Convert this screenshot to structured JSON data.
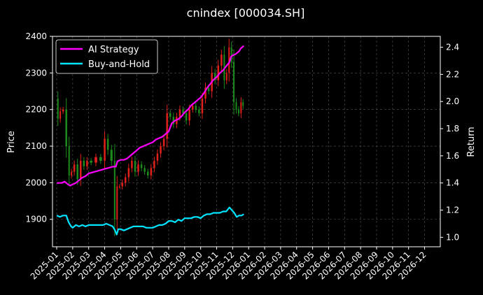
{
  "chart_data": {
    "type": "line",
    "title": "cnindex [000034.SH]",
    "ylabel": "Price",
    "y2label": "Return",
    "ylim": [
      1825,
      2400
    ],
    "y2lim": [
      0.93,
      2.48
    ],
    "yticks": [
      1900,
      2000,
      2100,
      2200,
      2300,
      2400
    ],
    "y2ticks": [
      1.0,
      1.2,
      1.4,
      1.6,
      1.8,
      2.0,
      2.2,
      2.4
    ],
    "xticks": [
      "2025-01",
      "2025-02",
      "2025-03",
      "2025-04",
      "2025-05",
      "2025-06",
      "2025-07",
      "2025-08",
      "2025-09",
      "2025-10",
      "2025-11",
      "2025-12",
      "2026-01",
      "2026-02",
      "2026-03",
      "2026-04",
      "2026-05",
      "2026-06",
      "2026-07",
      "2026-08",
      "2026-09",
      "2026-10",
      "2026-11",
      "2026-12"
    ],
    "grid": true,
    "legend_position": "top-left",
    "colors": {
      "up": "#e0201a",
      "down": "#1c8c1c",
      "ai": "#ff00ff",
      "bh": "#00e5ff"
    },
    "candles_close": [
      {
        "m": 0.0,
        "v": 2230
      },
      {
        "m": 0.15,
        "v": 2175
      },
      {
        "m": 0.3,
        "v": 2195
      },
      {
        "m": 0.5,
        "v": 2200
      },
      {
        "m": 0.7,
        "v": 2100
      },
      {
        "m": 0.85,
        "v": 2020
      },
      {
        "m": 1.0,
        "v": 2030
      },
      {
        "m": 1.2,
        "v": 2050
      },
      {
        "m": 1.4,
        "v": 2010
      },
      {
        "m": 1.6,
        "v": 2060
      },
      {
        "m": 1.8,
        "v": 2045
      },
      {
        "m": 2.0,
        "v": 2060
      },
      {
        "m": 2.3,
        "v": 2055
      },
      {
        "m": 2.6,
        "v": 2070
      },
      {
        "m": 2.9,
        "v": 2060
      },
      {
        "m": 3.1,
        "v": 2120
      },
      {
        "m": 3.3,
        "v": 2090
      },
      {
        "m": 3.55,
        "v": 2060
      },
      {
        "m": 3.7,
        "v": 1900
      },
      {
        "m": 3.85,
        "v": 1990
      },
      {
        "m": 4.0,
        "v": 1990
      },
      {
        "m": 4.2,
        "v": 2000
      },
      {
        "m": 4.4,
        "v": 2015
      },
      {
        "m": 4.6,
        "v": 2040
      },
      {
        "m": 4.8,
        "v": 2060
      },
      {
        "m": 5.0,
        "v": 2030
      },
      {
        "m": 5.2,
        "v": 2050
      },
      {
        "m": 5.4,
        "v": 2040
      },
      {
        "m": 5.6,
        "v": 2030
      },
      {
        "m": 5.8,
        "v": 2020
      },
      {
        "m": 6.0,
        "v": 2040
      },
      {
        "m": 6.2,
        "v": 2060
      },
      {
        "m": 6.4,
        "v": 2080
      },
      {
        "m": 6.6,
        "v": 2100
      },
      {
        "m": 6.8,
        "v": 2120
      },
      {
        "m": 7.0,
        "v": 2190
      },
      {
        "m": 7.2,
        "v": 2180
      },
      {
        "m": 7.4,
        "v": 2160
      },
      {
        "m": 7.6,
        "v": 2180
      },
      {
        "m": 7.8,
        "v": 2200
      },
      {
        "m": 8.0,
        "v": 2190
      },
      {
        "m": 8.2,
        "v": 2170
      },
      {
        "m": 8.4,
        "v": 2200
      },
      {
        "m": 8.6,
        "v": 2210
      },
      {
        "m": 8.8,
        "v": 2200
      },
      {
        "m": 9.0,
        "v": 2190
      },
      {
        "m": 9.2,
        "v": 2230
      },
      {
        "m": 9.4,
        "v": 2260
      },
      {
        "m": 9.6,
        "v": 2250
      },
      {
        "m": 9.8,
        "v": 2300
      },
      {
        "m": 10.0,
        "v": 2280
      },
      {
        "m": 10.2,
        "v": 2320
      },
      {
        "m": 10.4,
        "v": 2350
      },
      {
        "m": 10.55,
        "v": 2280
      },
      {
        "m": 10.7,
        "v": 2300
      },
      {
        "m": 10.85,
        "v": 2370
      },
      {
        "m": 11.0,
        "v": 2330
      },
      {
        "m": 11.15,
        "v": 2220
      },
      {
        "m": 11.3,
        "v": 2200
      },
      {
        "m": 11.45,
        "v": 2190
      },
      {
        "m": 11.6,
        "v": 2220
      },
      {
        "m": 11.7,
        "v": 2210
      }
    ],
    "series": [
      {
        "name": "AI Strategy",
        "points": [
          [
            0.0,
            1.4
          ],
          [
            0.3,
            1.4
          ],
          [
            0.5,
            1.41
          ],
          [
            0.7,
            1.39
          ],
          [
            0.85,
            1.38
          ],
          [
            1.0,
            1.39
          ],
          [
            1.2,
            1.4
          ],
          [
            1.4,
            1.42
          ],
          [
            1.6,
            1.44
          ],
          [
            1.8,
            1.45
          ],
          [
            2.0,
            1.47
          ],
          [
            2.3,
            1.48
          ],
          [
            2.6,
            1.49
          ],
          [
            2.9,
            1.5
          ],
          [
            3.2,
            1.51
          ],
          [
            3.5,
            1.52
          ],
          [
            3.7,
            1.52
          ],
          [
            3.8,
            1.56
          ],
          [
            4.0,
            1.57
          ],
          [
            4.2,
            1.57
          ],
          [
            4.4,
            1.58
          ],
          [
            4.6,
            1.6
          ],
          [
            4.8,
            1.62
          ],
          [
            5.0,
            1.64
          ],
          [
            5.2,
            1.66
          ],
          [
            5.4,
            1.67
          ],
          [
            5.6,
            1.68
          ],
          [
            5.8,
            1.69
          ],
          [
            6.0,
            1.7
          ],
          [
            6.2,
            1.72
          ],
          [
            6.4,
            1.73
          ],
          [
            6.6,
            1.74
          ],
          [
            6.8,
            1.76
          ],
          [
            7.0,
            1.78
          ],
          [
            7.2,
            1.84
          ],
          [
            7.4,
            1.86
          ],
          [
            7.6,
            1.87
          ],
          [
            7.8,
            1.89
          ],
          [
            8.0,
            1.92
          ],
          [
            8.2,
            1.94
          ],
          [
            8.4,
            1.97
          ],
          [
            8.6,
            1.99
          ],
          [
            8.8,
            2.01
          ],
          [
            9.0,
            2.03
          ],
          [
            9.2,
            2.06
          ],
          [
            9.4,
            2.1
          ],
          [
            9.6,
            2.13
          ],
          [
            9.8,
            2.16
          ],
          [
            10.0,
            2.18
          ],
          [
            10.2,
            2.21
          ],
          [
            10.4,
            2.23
          ],
          [
            10.6,
            2.26
          ],
          [
            10.8,
            2.29
          ],
          [
            10.9,
            2.33
          ],
          [
            11.0,
            2.34
          ],
          [
            11.2,
            2.35
          ],
          [
            11.4,
            2.37
          ],
          [
            11.5,
            2.39
          ],
          [
            11.6,
            2.4
          ],
          [
            11.7,
            2.41
          ]
        ]
      },
      {
        "name": "Buy-and-Hold",
        "points": [
          [
            0.0,
            1.16
          ],
          [
            0.2,
            1.15
          ],
          [
            0.4,
            1.16
          ],
          [
            0.6,
            1.16
          ],
          [
            0.75,
            1.11
          ],
          [
            0.9,
            1.08
          ],
          [
            1.0,
            1.07
          ],
          [
            1.2,
            1.09
          ],
          [
            1.4,
            1.08
          ],
          [
            1.6,
            1.09
          ],
          [
            1.8,
            1.08
          ],
          [
            2.0,
            1.09
          ],
          [
            2.3,
            1.09
          ],
          [
            2.6,
            1.09
          ],
          [
            2.9,
            1.09
          ],
          [
            3.1,
            1.1
          ],
          [
            3.3,
            1.09
          ],
          [
            3.5,
            1.08
          ],
          [
            3.65,
            1.05
          ],
          [
            3.75,
            1.02
          ],
          [
            3.85,
            1.06
          ],
          [
            4.0,
            1.06
          ],
          [
            4.2,
            1.05
          ],
          [
            4.4,
            1.06
          ],
          [
            4.6,
            1.07
          ],
          [
            4.8,
            1.08
          ],
          [
            5.0,
            1.08
          ],
          [
            5.2,
            1.08
          ],
          [
            5.4,
            1.08
          ],
          [
            5.6,
            1.07
          ],
          [
            5.8,
            1.07
          ],
          [
            6.0,
            1.07
          ],
          [
            6.2,
            1.08
          ],
          [
            6.4,
            1.09
          ],
          [
            6.6,
            1.09
          ],
          [
            6.8,
            1.1
          ],
          [
            7.0,
            1.12
          ],
          [
            7.2,
            1.12
          ],
          [
            7.4,
            1.11
          ],
          [
            7.6,
            1.13
          ],
          [
            7.8,
            1.12
          ],
          [
            8.0,
            1.14
          ],
          [
            8.2,
            1.14
          ],
          [
            8.4,
            1.14
          ],
          [
            8.6,
            1.15
          ],
          [
            8.8,
            1.15
          ],
          [
            9.0,
            1.14
          ],
          [
            9.2,
            1.16
          ],
          [
            9.4,
            1.17
          ],
          [
            9.6,
            1.17
          ],
          [
            9.8,
            1.18
          ],
          [
            10.0,
            1.18
          ],
          [
            10.2,
            1.18
          ],
          [
            10.4,
            1.19
          ],
          [
            10.6,
            1.19
          ],
          [
            10.8,
            1.22
          ],
          [
            10.95,
            1.2
          ],
          [
            11.1,
            1.18
          ],
          [
            11.25,
            1.15
          ],
          [
            11.4,
            1.16
          ],
          [
            11.55,
            1.16
          ],
          [
            11.7,
            1.17
          ]
        ]
      }
    ]
  }
}
